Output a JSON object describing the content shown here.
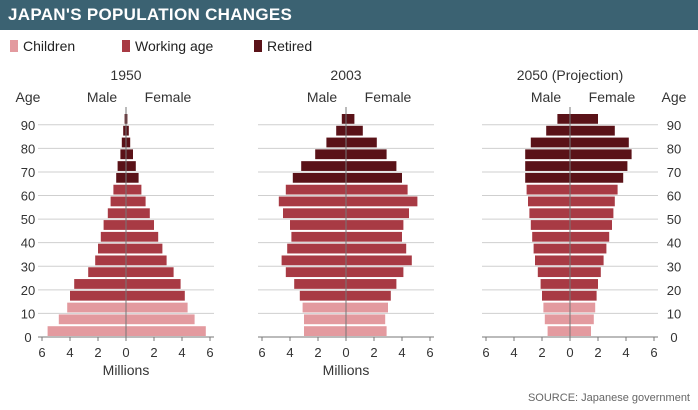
{
  "title": "JAPAN'S POPULATION CHANGES",
  "source": "SOURCE: Japanese government",
  "legend": [
    {
      "label": "Children",
      "color": "#e39a9f"
    },
    {
      "label": "Working age",
      "color": "#a83a44"
    },
    {
      "label": "Retired",
      "color": "#5a1218"
    }
  ],
  "chart_data": [
    {
      "type": "bar",
      "title": "1950",
      "xlabel": "Millions",
      "ylabel": "Age",
      "male_label": "Male",
      "female_label": "Female",
      "xlim": [
        -6,
        6
      ],
      "ylim": [
        0,
        95
      ],
      "age_ticks": [
        "0",
        "10",
        "20",
        "30",
        "40",
        "50",
        "60",
        "70",
        "80",
        "90"
      ],
      "x_ticks": [
        "6",
        "4",
        "2",
        "0",
        "2",
        "4",
        "6"
      ],
      "age_groups": [
        0,
        5,
        10,
        15,
        20,
        25,
        30,
        35,
        40,
        45,
        50,
        55,
        60,
        65,
        70,
        75,
        80,
        85,
        90
      ],
      "series": [
        {
          "name": "Male",
          "values": [
            5.6,
            4.8,
            4.2,
            4.0,
            3.7,
            2.7,
            2.2,
            2.0,
            1.8,
            1.6,
            1.3,
            1.1,
            0.9,
            0.7,
            0.6,
            0.4,
            0.3,
            0.2,
            0.1
          ]
        },
        {
          "name": "Female",
          "values": [
            5.7,
            4.9,
            4.4,
            4.2,
            3.9,
            3.4,
            2.9,
            2.6,
            2.3,
            2.0,
            1.7,
            1.4,
            1.1,
            0.9,
            0.7,
            0.5,
            0.3,
            0.2,
            0.1
          ]
        }
      ]
    },
    {
      "type": "bar",
      "title": "2003",
      "xlabel": "Millions",
      "ylabel": "Age",
      "male_label": "Male",
      "female_label": "Female",
      "xlim": [
        -6,
        6
      ],
      "ylim": [
        0,
        95
      ],
      "x_ticks": [
        "6",
        "4",
        "2",
        "0",
        "2",
        "4",
        "6"
      ],
      "age_groups": [
        0,
        5,
        10,
        15,
        20,
        25,
        30,
        35,
        40,
        45,
        50,
        55,
        60,
        65,
        70,
        75,
        80,
        85,
        90
      ],
      "series": [
        {
          "name": "Male",
          "values": [
            3.0,
            3.0,
            3.1,
            3.3,
            3.7,
            4.3,
            4.6,
            4.2,
            3.9,
            4.0,
            4.5,
            4.8,
            4.3,
            3.8,
            3.2,
            2.2,
            1.4,
            0.7,
            0.3
          ]
        },
        {
          "name": "Female",
          "values": [
            2.9,
            2.8,
            3.0,
            3.2,
            3.6,
            4.1,
            4.7,
            4.3,
            4.0,
            4.1,
            4.5,
            5.1,
            4.4,
            4.0,
            3.6,
            2.9,
            2.2,
            1.2,
            0.6
          ]
        }
      ]
    },
    {
      "type": "bar",
      "title": "2050 (Projection)",
      "xlabel": "",
      "ylabel": "Age",
      "male_label": "Male",
      "female_label": "Female",
      "xlim": [
        -6,
        6
      ],
      "ylim": [
        0,
        95
      ],
      "age_ticks": [
        "0",
        "10",
        "20",
        "30",
        "40",
        "50",
        "60",
        "70",
        "80",
        "90"
      ],
      "x_ticks": [
        "6",
        "4",
        "2",
        "0",
        "2",
        "4",
        "6"
      ],
      "age_groups": [
        0,
        5,
        10,
        15,
        20,
        25,
        30,
        35,
        40,
        45,
        50,
        55,
        60,
        65,
        70,
        75,
        80,
        85,
        90
      ],
      "series": [
        {
          "name": "Male",
          "values": [
            1.6,
            1.8,
            1.9,
            2.0,
            2.1,
            2.3,
            2.5,
            2.6,
            2.7,
            2.8,
            2.9,
            3.0,
            3.1,
            3.2,
            3.2,
            3.2,
            2.8,
            1.7,
            0.9
          ]
        },
        {
          "name": "Female",
          "values": [
            1.5,
            1.7,
            1.8,
            1.9,
            2.0,
            2.2,
            2.4,
            2.6,
            2.8,
            3.0,
            3.1,
            3.2,
            3.4,
            3.8,
            4.1,
            4.4,
            4.2,
            3.2,
            2.0
          ]
        }
      ]
    }
  ]
}
